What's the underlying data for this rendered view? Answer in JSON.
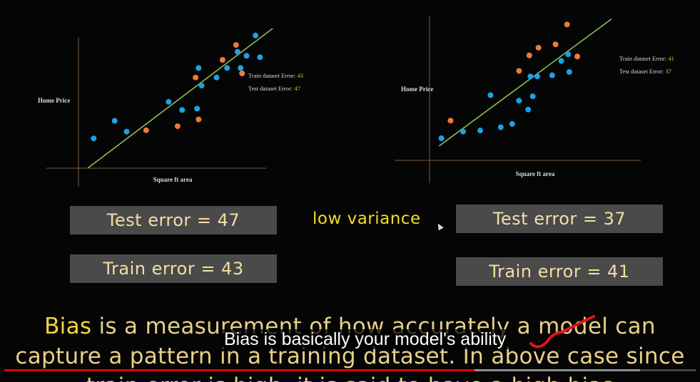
{
  "chart_data": [
    {
      "type": "scatter",
      "xlabel": "Square ft area",
      "ylabel": "Home Price",
      "annotations": [
        {
          "label": "Train dataset Error:",
          "value": "43"
        },
        {
          "label": "Test dataset Error:",
          "value": "47"
        }
      ],
      "series": [
        {
          "color": "#1aa3e8",
          "points": [
            [
              0.3,
              2.2
            ],
            [
              1.7,
              3.5
            ],
            [
              2.5,
              2.7
            ],
            [
              5.3,
              4.9
            ],
            [
              6.2,
              4.3
            ],
            [
              7.2,
              4.4
            ],
            [
              7.5,
              6.1
            ],
            [
              7.3,
              7.4
            ],
            [
              8.5,
              6.7
            ],
            [
              9.2,
              7.4
            ],
            [
              9.9,
              8.6
            ],
            [
              10.1,
              7.4
            ],
            [
              10.5,
              8.3
            ],
            [
              11.1,
              9.8
            ],
            [
              11.4,
              8.2
            ]
          ]
        },
        {
          "color": "#ee7a3a",
          "points": [
            [
              3.8,
              2.8
            ],
            [
              5.9,
              3.1
            ],
            [
              7.1,
              6.7
            ],
            [
              7.3,
              3.6
            ],
            [
              8.9,
              8.0
            ],
            [
              9.8,
              9.1
            ],
            [
              10.2,
              7.0
            ]
          ]
        }
      ],
      "fit_line": [
        [
          -0.1,
          0
        ],
        [
          12.7,
          10.7
        ]
      ]
    },
    {
      "type": "scatter",
      "xlabel": "Square ft area",
      "ylabel": "Home Price",
      "annotations": [
        {
          "label": "Train dataset Error:",
          "value": "41"
        },
        {
          "label": "Test dataset Error:",
          "value": "37"
        }
      ],
      "series": [
        {
          "color": "#1aa3e8",
          "points": [
            [
              0.1,
              2.0
            ],
            [
              2.0,
              2.6
            ],
            [
              3.5,
              2.7
            ],
            [
              5.3,
              3.0
            ],
            [
              4.4,
              5.9
            ],
            [
              6.3,
              3.3
            ],
            [
              6.9,
              5.4
            ],
            [
              7.7,
              4.6
            ],
            [
              8.1,
              5.8
            ],
            [
              7.9,
              7.6
            ],
            [
              8.5,
              7.6
            ],
            [
              9.8,
              7.7
            ],
            [
              10.6,
              9.0
            ],
            [
              11.2,
              9.6
            ],
            [
              11.3,
              8.0
            ]
          ]
        },
        {
          "color": "#ee7a3a",
          "points": [
            [
              0.9,
              3.6
            ],
            [
              6.9,
              8.1
            ],
            [
              7.8,
              9.5
            ],
            [
              8.6,
              10.2
            ],
            [
              10.1,
              10.5
            ],
            [
              11.1,
              12.3
            ],
            [
              12.0,
              9.4
            ]
          ]
        }
      ],
      "fit_line": [
        [
          -0.1,
          1.3
        ],
        [
          15.0,
          12.8
        ]
      ]
    }
  ],
  "stats": {
    "left_test": "Test error = 47",
    "left_train": "Train error = 43",
    "right_test": "Test error = 37",
    "right_train": "Train error = 41",
    "middle_label": "low variance"
  },
  "bias_text": {
    "line1_highlight": "Bias",
    "line1_rest": " is a measurement of how accurately a model can",
    "line2": "capture a pattern in a training dataset. In above case since",
    "line3": "train error is high, it is said to have a high bias"
  },
  "subtitle": "Bias is basically your model's ability",
  "player": {
    "progress": 0.68,
    "buffered": 0.92,
    "colors": {
      "played": "#e00000"
    }
  }
}
